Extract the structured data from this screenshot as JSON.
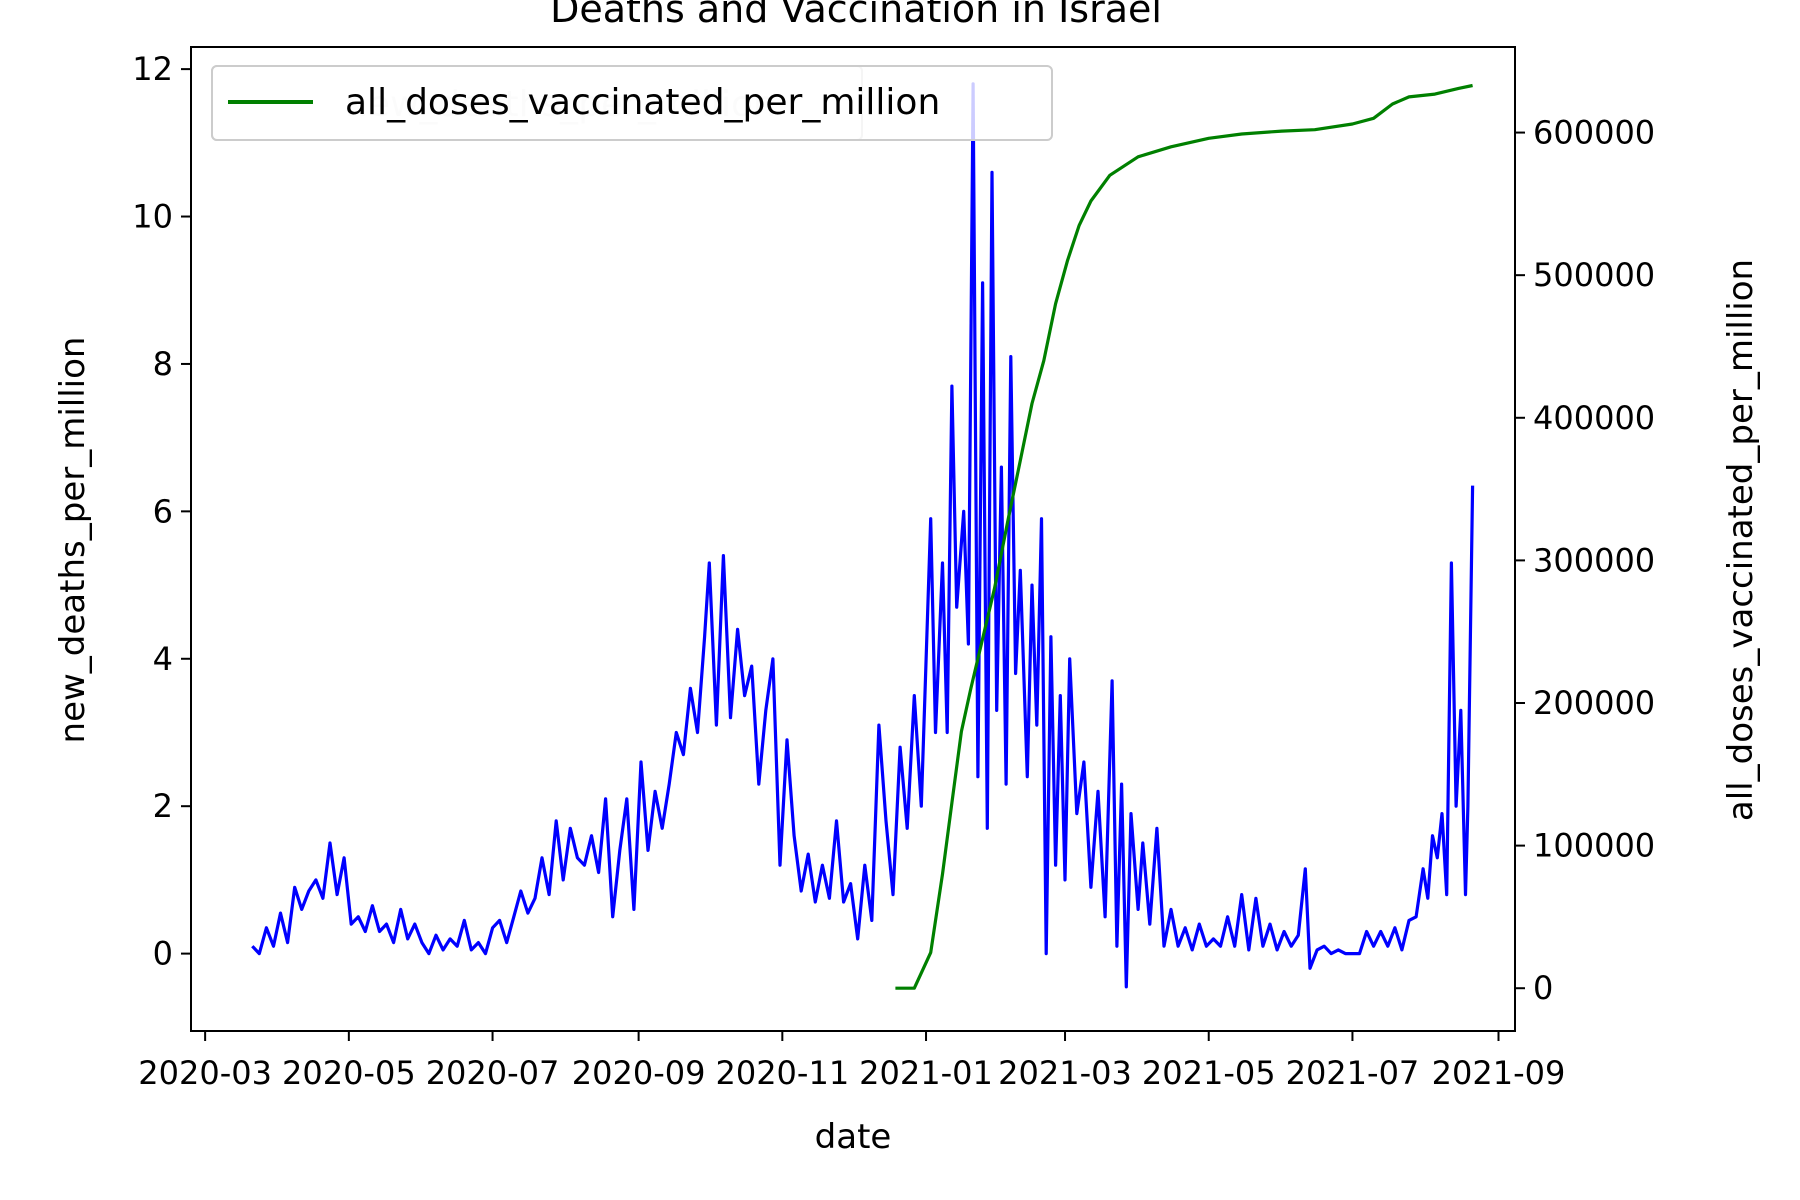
{
  "chart_data": {
    "type": "line",
    "title": "Deaths and Vaccination in Israel",
    "xlabel": "date",
    "ylabel_left": "new_deaths_per_million",
    "ylabel_right": "all_doses_vaccinated_per_million",
    "x_ticks": [
      "2020-03",
      "2020-05",
      "2020-07",
      "2020-09",
      "2020-11",
      "2021-01",
      "2021-03",
      "2021-05",
      "2021-07",
      "2021-09"
    ],
    "xlim": [
      "2020-02-24",
      "2021-09-08"
    ],
    "y_left_ticks": [
      "0",
      "2",
      "4",
      "6",
      "8",
      "10",
      "12"
    ],
    "y_left_lim": [
      -1.05,
      12.3
    ],
    "y_right_ticks": [
      "0",
      "100000",
      "200000",
      "300000",
      "400000",
      "500000",
      "600000"
    ],
    "y_right_lim": [
      -30000,
      660000
    ],
    "grid": false,
    "legend_placement": "upper-left",
    "legend_entries": [
      "all_doses_vaccinated_per_million"
    ],
    "legend_hidden_entry": "new_deaths_per_million",
    "series": [
      {
        "name": "new_deaths_per_million",
        "axis": "left",
        "color": "#0000ff",
        "points": [
          [
            "2020-03-21",
            0.1
          ],
          [
            "2020-03-24",
            0.0
          ],
          [
            "2020-03-27",
            0.35
          ],
          [
            "2020-03-30",
            0.1
          ],
          [
            "2020-04-02",
            0.55
          ],
          [
            "2020-04-05",
            0.15
          ],
          [
            "2020-04-08",
            0.9
          ],
          [
            "2020-04-11",
            0.6
          ],
          [
            "2020-04-14",
            0.85
          ],
          [
            "2020-04-17",
            1.0
          ],
          [
            "2020-04-20",
            0.75
          ],
          [
            "2020-04-23",
            1.5
          ],
          [
            "2020-04-26",
            0.8
          ],
          [
            "2020-04-29",
            1.3
          ],
          [
            "2020-05-02",
            0.4
          ],
          [
            "2020-05-05",
            0.5
          ],
          [
            "2020-05-08",
            0.3
          ],
          [
            "2020-05-11",
            0.65
          ],
          [
            "2020-05-14",
            0.3
          ],
          [
            "2020-05-17",
            0.4
          ],
          [
            "2020-05-20",
            0.15
          ],
          [
            "2020-05-23",
            0.6
          ],
          [
            "2020-05-26",
            0.2
          ],
          [
            "2020-05-29",
            0.4
          ],
          [
            "2020-06-01",
            0.15
          ],
          [
            "2020-06-04",
            0.0
          ],
          [
            "2020-06-07",
            0.25
          ],
          [
            "2020-06-10",
            0.05
          ],
          [
            "2020-06-13",
            0.2
          ],
          [
            "2020-06-16",
            0.1
          ],
          [
            "2020-06-19",
            0.45
          ],
          [
            "2020-06-22",
            0.05
          ],
          [
            "2020-06-25",
            0.15
          ],
          [
            "2020-06-28",
            0.0
          ],
          [
            "2020-07-01",
            0.35
          ],
          [
            "2020-07-04",
            0.45
          ],
          [
            "2020-07-07",
            0.15
          ],
          [
            "2020-07-10",
            0.5
          ],
          [
            "2020-07-13",
            0.85
          ],
          [
            "2020-07-16",
            0.55
          ],
          [
            "2020-07-19",
            0.75
          ],
          [
            "2020-07-22",
            1.3
          ],
          [
            "2020-07-25",
            0.8
          ],
          [
            "2020-07-28",
            1.8
          ],
          [
            "2020-07-31",
            1.0
          ],
          [
            "2020-08-03",
            1.7
          ],
          [
            "2020-08-06",
            1.3
          ],
          [
            "2020-08-09",
            1.2
          ],
          [
            "2020-08-12",
            1.6
          ],
          [
            "2020-08-15",
            1.1
          ],
          [
            "2020-08-18",
            2.1
          ],
          [
            "2020-08-21",
            0.5
          ],
          [
            "2020-08-24",
            1.4
          ],
          [
            "2020-08-27",
            2.1
          ],
          [
            "2020-08-30",
            0.6
          ],
          [
            "2020-09-02",
            2.6
          ],
          [
            "2020-09-05",
            1.4
          ],
          [
            "2020-09-08",
            2.2
          ],
          [
            "2020-09-11",
            1.7
          ],
          [
            "2020-09-14",
            2.3
          ],
          [
            "2020-09-17",
            3.0
          ],
          [
            "2020-09-20",
            2.7
          ],
          [
            "2020-09-23",
            3.6
          ],
          [
            "2020-09-26",
            3.0
          ],
          [
            "2020-09-29",
            4.3
          ],
          [
            "2020-10-01",
            5.3
          ],
          [
            "2020-10-04",
            3.1
          ],
          [
            "2020-10-07",
            5.4
          ],
          [
            "2020-10-10",
            3.2
          ],
          [
            "2020-10-13",
            4.4
          ],
          [
            "2020-10-16",
            3.5
          ],
          [
            "2020-10-19",
            3.9
          ],
          [
            "2020-10-22",
            2.3
          ],
          [
            "2020-10-25",
            3.3
          ],
          [
            "2020-10-28",
            4.0
          ],
          [
            "2020-10-31",
            1.2
          ],
          [
            "2020-11-03",
            2.9
          ],
          [
            "2020-11-06",
            1.6
          ],
          [
            "2020-11-09",
            0.85
          ],
          [
            "2020-11-12",
            1.35
          ],
          [
            "2020-11-15",
            0.7
          ],
          [
            "2020-11-18",
            1.2
          ],
          [
            "2020-11-21",
            0.75
          ],
          [
            "2020-11-24",
            1.8
          ],
          [
            "2020-11-27",
            0.7
          ],
          [
            "2020-11-30",
            0.95
          ],
          [
            "2020-12-03",
            0.2
          ],
          [
            "2020-12-06",
            1.2
          ],
          [
            "2020-12-09",
            0.45
          ],
          [
            "2020-12-12",
            3.1
          ],
          [
            "2020-12-15",
            1.8
          ],
          [
            "2020-12-18",
            0.8
          ],
          [
            "2020-12-21",
            2.8
          ],
          [
            "2020-12-24",
            1.7
          ],
          [
            "2020-12-27",
            3.5
          ],
          [
            "2020-12-30",
            2.0
          ],
          [
            "2021-01-03",
            5.9
          ],
          [
            "2021-01-05",
            3.0
          ],
          [
            "2021-01-08",
            5.3
          ],
          [
            "2021-01-10",
            3.0
          ],
          [
            "2021-01-12",
            7.7
          ],
          [
            "2021-01-14",
            4.7
          ],
          [
            "2021-01-17",
            6.0
          ],
          [
            "2021-01-19",
            4.2
          ],
          [
            "2021-01-21",
            11.8
          ],
          [
            "2021-01-23",
            2.4
          ],
          [
            "2021-01-25",
            9.1
          ],
          [
            "2021-01-27",
            1.7
          ],
          [
            "2021-01-29",
            10.6
          ],
          [
            "2021-01-31",
            3.3
          ],
          [
            "2021-02-02",
            6.6
          ],
          [
            "2021-02-04",
            2.3
          ],
          [
            "2021-02-06",
            8.1
          ],
          [
            "2021-02-08",
            3.8
          ],
          [
            "2021-02-10",
            5.2
          ],
          [
            "2021-02-13",
            2.4
          ],
          [
            "2021-02-15",
            5.0
          ],
          [
            "2021-02-17",
            3.1
          ],
          [
            "2021-02-19",
            5.9
          ],
          [
            "2021-02-21",
            0.0
          ],
          [
            "2021-02-23",
            4.3
          ],
          [
            "2021-02-25",
            1.2
          ],
          [
            "2021-02-27",
            3.5
          ],
          [
            "2021-03-01",
            1.0
          ],
          [
            "2021-03-03",
            4.0
          ],
          [
            "2021-03-06",
            1.9
          ],
          [
            "2021-03-09",
            2.6
          ],
          [
            "2021-03-12",
            0.9
          ],
          [
            "2021-03-15",
            2.2
          ],
          [
            "2021-03-18",
            0.5
          ],
          [
            "2021-03-21",
            3.7
          ],
          [
            "2021-03-23",
            0.1
          ],
          [
            "2021-03-25",
            2.3
          ],
          [
            "2021-03-27",
            -0.45
          ],
          [
            "2021-03-29",
            1.9
          ],
          [
            "2021-04-01",
            0.6
          ],
          [
            "2021-04-03",
            1.5
          ],
          [
            "2021-04-06",
            0.4
          ],
          [
            "2021-04-09",
            1.7
          ],
          [
            "2021-04-12",
            0.1
          ],
          [
            "2021-04-15",
            0.6
          ],
          [
            "2021-04-18",
            0.1
          ],
          [
            "2021-04-21",
            0.35
          ],
          [
            "2021-04-24",
            0.05
          ],
          [
            "2021-04-27",
            0.4
          ],
          [
            "2021-04-30",
            0.1
          ],
          [
            "2021-05-03",
            0.2
          ],
          [
            "2021-05-06",
            0.1
          ],
          [
            "2021-05-09",
            0.5
          ],
          [
            "2021-05-12",
            0.1
          ],
          [
            "2021-05-15",
            0.8
          ],
          [
            "2021-05-18",
            0.05
          ],
          [
            "2021-05-21",
            0.75
          ],
          [
            "2021-05-24",
            0.1
          ],
          [
            "2021-05-27",
            0.4
          ],
          [
            "2021-05-30",
            0.05
          ],
          [
            "2021-06-02",
            0.3
          ],
          [
            "2021-06-05",
            0.1
          ],
          [
            "2021-06-08",
            0.25
          ],
          [
            "2021-06-11",
            1.15
          ],
          [
            "2021-06-13",
            -0.2
          ],
          [
            "2021-06-16",
            0.05
          ],
          [
            "2021-06-19",
            0.1
          ],
          [
            "2021-06-22",
            0.0
          ],
          [
            "2021-06-25",
            0.05
          ],
          [
            "2021-06-28",
            0.0
          ],
          [
            "2021-07-01",
            0.0
          ],
          [
            "2021-07-04",
            0.0
          ],
          [
            "2021-07-07",
            0.3
          ],
          [
            "2021-07-10",
            0.1
          ],
          [
            "2021-07-13",
            0.3
          ],
          [
            "2021-07-16",
            0.1
          ],
          [
            "2021-07-19",
            0.35
          ],
          [
            "2021-07-22",
            0.05
          ],
          [
            "2021-07-25",
            0.45
          ],
          [
            "2021-07-28",
            0.5
          ],
          [
            "2021-07-31",
            1.15
          ],
          [
            "2021-08-02",
            0.75
          ],
          [
            "2021-08-04",
            1.6
          ],
          [
            "2021-08-06",
            1.3
          ],
          [
            "2021-08-08",
            1.9
          ],
          [
            "2021-08-10",
            0.8
          ],
          [
            "2021-08-12",
            5.3
          ],
          [
            "2021-08-14",
            2.0
          ],
          [
            "2021-08-16",
            3.3
          ],
          [
            "2021-08-18",
            0.8
          ],
          [
            "2021-08-19",
            2.0
          ],
          [
            "2021-08-21",
            6.35
          ]
        ]
      },
      {
        "name": "all_doses_vaccinated_per_million",
        "axis": "right",
        "color": "#008000",
        "points": [
          [
            "2020-12-19",
            0
          ],
          [
            "2020-12-27",
            0
          ],
          [
            "2021-01-03",
            25000
          ],
          [
            "2021-01-08",
            80000
          ],
          [
            "2021-01-12",
            130000
          ],
          [
            "2021-01-16",
            180000
          ],
          [
            "2021-01-20",
            210000
          ],
          [
            "2021-01-25",
            245000
          ],
          [
            "2021-01-30",
            280000
          ],
          [
            "2021-02-05",
            330000
          ],
          [
            "2021-02-10",
            370000
          ],
          [
            "2021-02-15",
            410000
          ],
          [
            "2021-02-20",
            440000
          ],
          [
            "2021-02-25",
            480000
          ],
          [
            "2021-03-02",
            510000
          ],
          [
            "2021-03-07",
            535000
          ],
          [
            "2021-03-12",
            552000
          ],
          [
            "2021-03-20",
            570000
          ],
          [
            "2021-04-01",
            583000
          ],
          [
            "2021-04-15",
            590000
          ],
          [
            "2021-05-01",
            596000
          ],
          [
            "2021-05-15",
            599000
          ],
          [
            "2021-06-01",
            601000
          ],
          [
            "2021-06-15",
            602000
          ],
          [
            "2021-07-01",
            606000
          ],
          [
            "2021-07-10",
            610000
          ],
          [
            "2021-07-18",
            620000
          ],
          [
            "2021-07-25",
            625000
          ],
          [
            "2021-08-05",
            627000
          ],
          [
            "2021-08-15",
            631000
          ],
          [
            "2021-08-21",
            633000
          ]
        ]
      }
    ]
  }
}
